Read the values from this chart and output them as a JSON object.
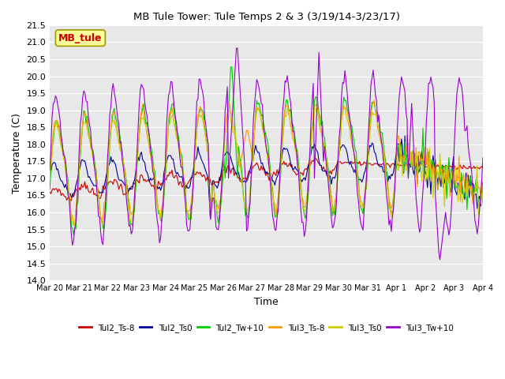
{
  "title": "MB Tule Tower: Tule Temps 2 & 3 (3/19/14-3/23/17)",
  "xlabel": "Time",
  "ylabel": "Temperature (C)",
  "ylim": [
    14.0,
    21.5
  ],
  "yticks": [
    14.0,
    14.5,
    15.0,
    15.5,
    16.0,
    16.5,
    17.0,
    17.5,
    18.0,
    18.5,
    19.0,
    19.5,
    20.0,
    20.5,
    21.0,
    21.5
  ],
  "xtick_labels": [
    "Mar 20",
    "Mar 21",
    "Mar 22",
    "Mar 23",
    "Mar 24",
    "Mar 25",
    "Mar 26",
    "Mar 27",
    "Mar 28",
    "Mar 29",
    "Mar 30",
    "Mar 31",
    "Apr 1",
    "Apr 2",
    "Apr 3",
    "Apr 4"
  ],
  "legend_labels": [
    "Tul2_Ts-8",
    "Tul2_Ts0",
    "Tul2_Tw+10",
    "Tul3_Ts-8",
    "Tul3_Ts0",
    "Tul3_Tw+10"
  ],
  "line_colors": [
    "#cc0000",
    "#000099",
    "#00cc00",
    "#ff9900",
    "#cccc00",
    "#9900cc"
  ],
  "watermark_text": "MB_tule",
  "watermark_color": "#cc0000",
  "watermark_bg": "#ffff99",
  "background_color": "#ffffff",
  "grid_color": "#cccccc"
}
